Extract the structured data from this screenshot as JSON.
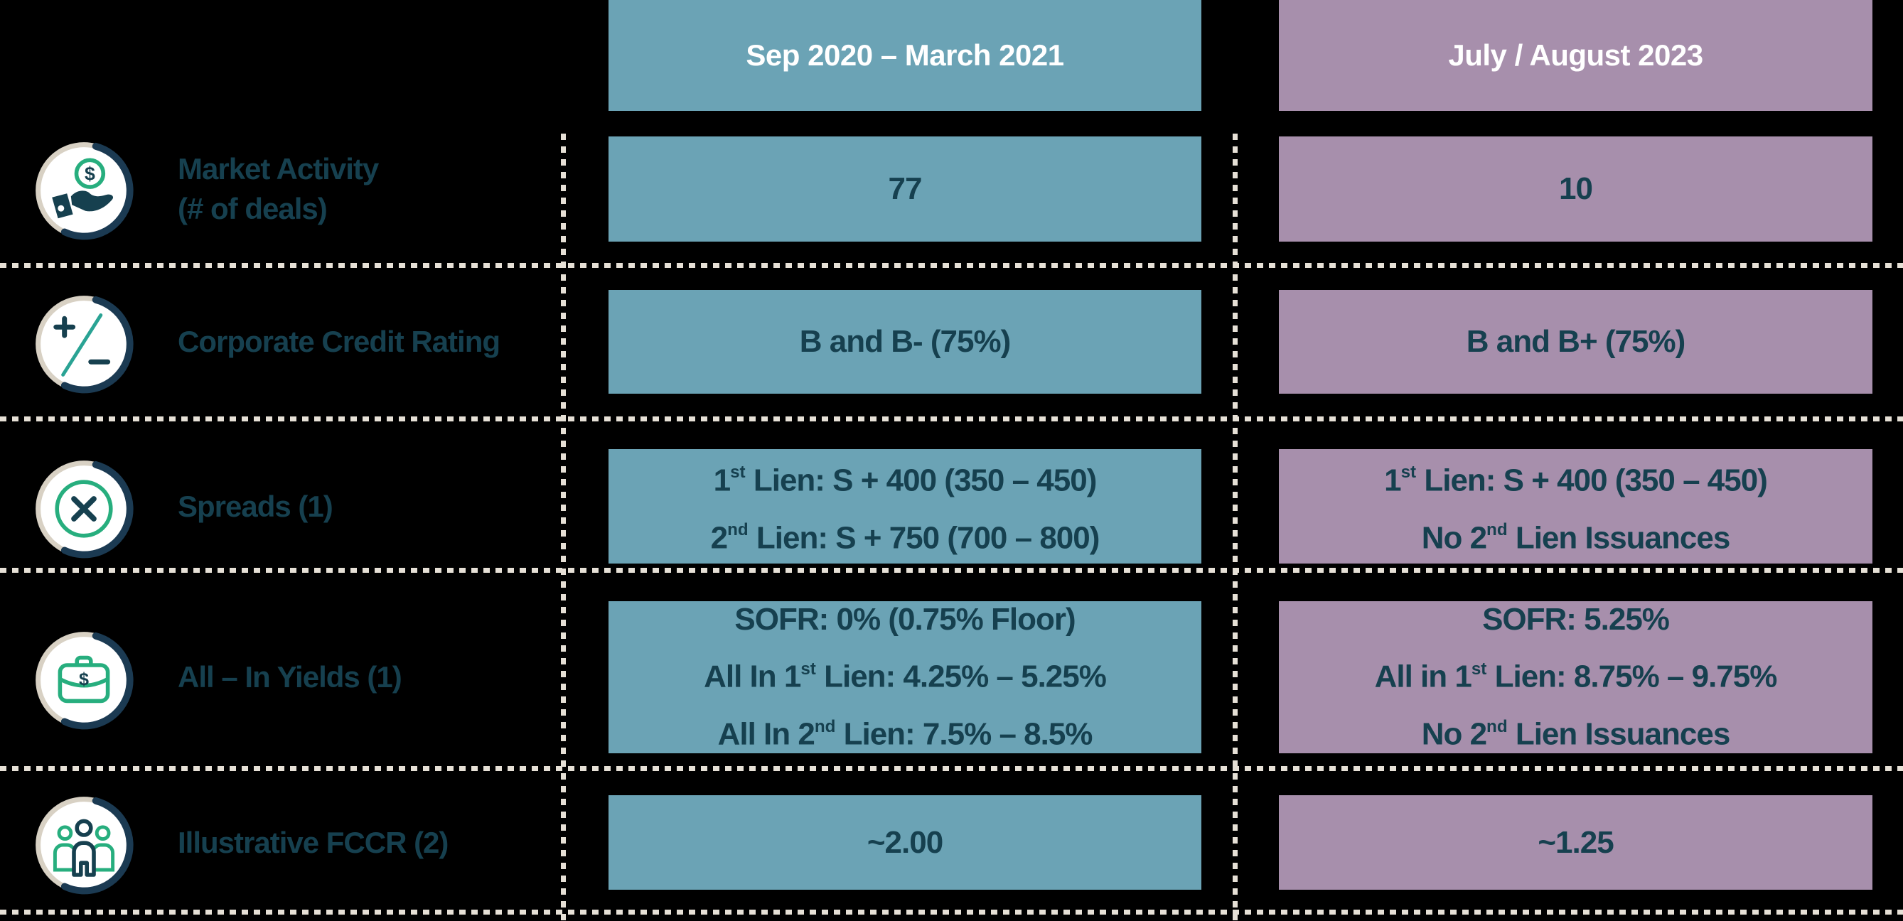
{
  "headers": {
    "period1": "Sep 2020 – March 2021",
    "period2": "July / August 2023"
  },
  "colors": {
    "background": "#000000",
    "teal_column": "#6BA3B5",
    "purple_column": "#A78FAC",
    "dark_text": "#16404F",
    "green_accent": "#27AE7E",
    "slash_green": "#2AA394",
    "cream_ring": "#D8D1C4",
    "dotted_line": "#E6E0D6",
    "header_text": "#FFFFFF"
  },
  "rows": [
    {
      "icon": "coin-in-hand-icon",
      "label_lines": [
        "Market Activity",
        "(# of deals)"
      ],
      "col1_lines": [
        [
          "77"
        ]
      ],
      "col2_lines": [
        [
          "10"
        ]
      ]
    },
    {
      "icon": "plus-minus-icon",
      "label_lines": [
        "Corporate Credit Rating"
      ],
      "col1_lines": [
        [
          "B and B- (75%)"
        ]
      ],
      "col2_lines": [
        [
          "B and B+ (75%)"
        ]
      ]
    },
    {
      "icon": "x-circle-icon",
      "label_lines": [
        "Spreads (1)"
      ],
      "col1_lines": [
        [
          "1",
          {
            "t": "st",
            "sup": true
          },
          " Lien: S + 400 (350 – 450)"
        ],
        [
          "2",
          {
            "t": "nd",
            "sup": true
          },
          " Lien: S + 750 (700 – 800)"
        ]
      ],
      "col2_lines": [
        [
          "1",
          {
            "t": "st",
            "sup": true
          },
          " Lien: S + 400 (350 – 450)"
        ],
        [
          "No 2",
          {
            "t": "nd",
            "sup": true
          },
          " Lien Issuances"
        ]
      ]
    },
    {
      "icon": "briefcase-dollar-icon",
      "label_lines": [
        "All – In Yields (1)"
      ],
      "col1_lines": [
        [
          "SOFR: 0% (0.75% Floor)"
        ],
        [
          "All In 1",
          {
            "t": "st",
            "sup": true
          },
          " Lien: 4.25% – 5.25%"
        ],
        [
          "All In 2",
          {
            "t": "nd",
            "sup": true
          },
          " Lien: 7.5% – 8.5%"
        ]
      ],
      "col2_lines": [
        [
          "SOFR: 5.25%"
        ],
        [
          "All in 1",
          {
            "t": "st",
            "sup": true
          },
          " Lien: 8.75% – 9.75%"
        ],
        [
          "No 2",
          {
            "t": "nd",
            "sup": true
          },
          " Lien Issuances"
        ]
      ]
    },
    {
      "icon": "people-group-icon",
      "label_lines": [
        "Illustrative FCCR (2)"
      ],
      "col1_lines": [
        [
          "~2.00"
        ]
      ],
      "col2_lines": [
        [
          "~1.25"
        ]
      ]
    }
  ]
}
